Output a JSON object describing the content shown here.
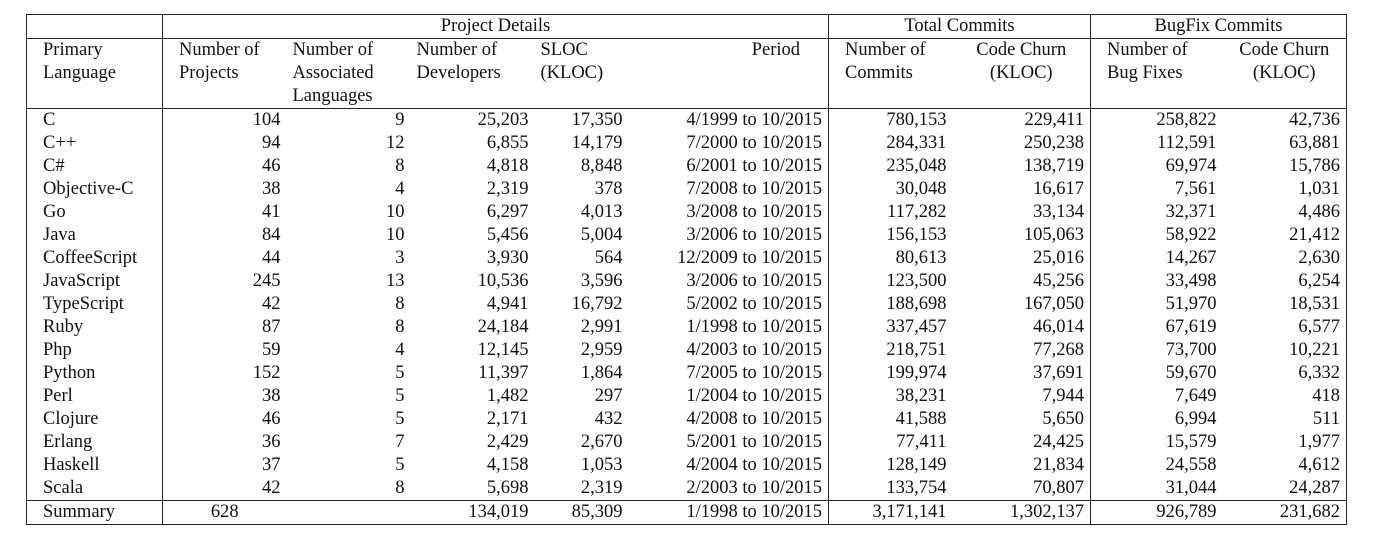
{
  "groups": {
    "project_details": "Project Details",
    "total_commits": "Total Commits",
    "bugfix_commits": "BugFix Commits"
  },
  "headers": {
    "primary_language": [
      "Primary",
      "Language"
    ],
    "num_projects": [
      "Number of",
      "Projects"
    ],
    "num_assoc_languages": [
      "Number of",
      "Associated",
      "Languages"
    ],
    "num_developers": [
      "Number of",
      "Developers"
    ],
    "sloc": [
      "SLOC",
      "(KLOC)"
    ],
    "period": [
      "Period"
    ],
    "num_commits": [
      "Number of",
      "Commits"
    ],
    "code_churn_total": [
      "Code Churn",
      "(KLOC)"
    ],
    "num_bug_fixes": [
      "Number of",
      "Bug Fixes"
    ],
    "code_churn_bugfix": [
      "Code Churn",
      "(KLOC)"
    ]
  },
  "rows": [
    [
      "C",
      "104",
      "9",
      "25,203",
      "17,350",
      "4/1999 to 10/2015",
      "780,153",
      "229,411",
      "258,822",
      "42,736"
    ],
    [
      "C++",
      "94",
      "12",
      "6,855",
      "14,179",
      "7/2000 to 10/2015",
      "284,331",
      "250,238",
      "112,591",
      "63,881"
    ],
    [
      "C#",
      "46",
      "8",
      "4,818",
      "8,848",
      "6/2001 to 10/2015",
      "235,048",
      "138,719",
      "69,974",
      "15,786"
    ],
    [
      "Objective-C",
      "38",
      "4",
      "2,319",
      "378",
      "7/2008 to 10/2015",
      "30,048",
      "16,617",
      "7,561",
      "1,031"
    ],
    [
      "Go",
      "41",
      "10",
      "6,297",
      "4,013",
      "3/2008 to 10/2015",
      "117,282",
      "33,134",
      "32,371",
      "4,486"
    ],
    [
      "Java",
      "84",
      "10",
      "5,456",
      "5,004",
      "3/2006 to 10/2015",
      "156,153",
      "105,063",
      "58,922",
      "21,412"
    ],
    [
      "CoffeeScript",
      "44",
      "3",
      "3,930",
      "564",
      "12/2009 to 10/2015",
      "80,613",
      "25,016",
      "14,267",
      "2,630"
    ],
    [
      "JavaScript",
      "245",
      "13",
      "10,536",
      "3,596",
      "3/2006 to 10/2015",
      "123,500",
      "45,256",
      "33,498",
      "6,254"
    ],
    [
      "TypeScript",
      "42",
      "8",
      "4,941",
      "16,792",
      "5/2002 to 10/2015",
      "188,698",
      "167,050",
      "51,970",
      "18,531"
    ],
    [
      "Ruby",
      "87",
      "8",
      "24,184",
      "2,991",
      "1/1998 to 10/2015",
      "337,457",
      "46,014",
      "67,619",
      "6,577"
    ],
    [
      "Php",
      "59",
      "4",
      "12,145",
      "2,959",
      "4/2003 to 10/2015",
      "218,751",
      "77,268",
      "73,700",
      "10,221"
    ],
    [
      "Python",
      "152",
      "5",
      "11,397",
      "1,864",
      "7/2005 to 10/2015",
      "199,974",
      "37,691",
      "59,670",
      "6,332"
    ],
    [
      "Perl",
      "38",
      "5",
      "1,482",
      "297",
      "1/2004 to 10/2015",
      "38,231",
      "7,944",
      "7,649",
      "418"
    ],
    [
      "Clojure",
      "46",
      "5",
      "2,171",
      "432",
      "4/2008 to 10/2015",
      "41,588",
      "5,650",
      "6,994",
      "511"
    ],
    [
      "Erlang",
      "36",
      "7",
      "2,429",
      "2,670",
      "5/2001 to 10/2015",
      "77,411",
      "24,425",
      "15,579",
      "1,977"
    ],
    [
      "Haskell",
      "37",
      "5",
      "4,158",
      "1,053",
      "4/2004 to 10/2015",
      "128,149",
      "21,834",
      "24,558",
      "4,612"
    ],
    [
      "Scala",
      "42",
      "8",
      "5,698",
      "2,319",
      "2/2003 to 10/2015",
      "133,754",
      "70,807",
      "31,044",
      "24,287"
    ]
  ],
  "summary": [
    "Summary",
    "628",
    "",
    "134,019",
    "85,309",
    "1/1998 to 10/2015",
    "3,171,141",
    "1,302,137",
    "926,789",
    "231,682"
  ]
}
